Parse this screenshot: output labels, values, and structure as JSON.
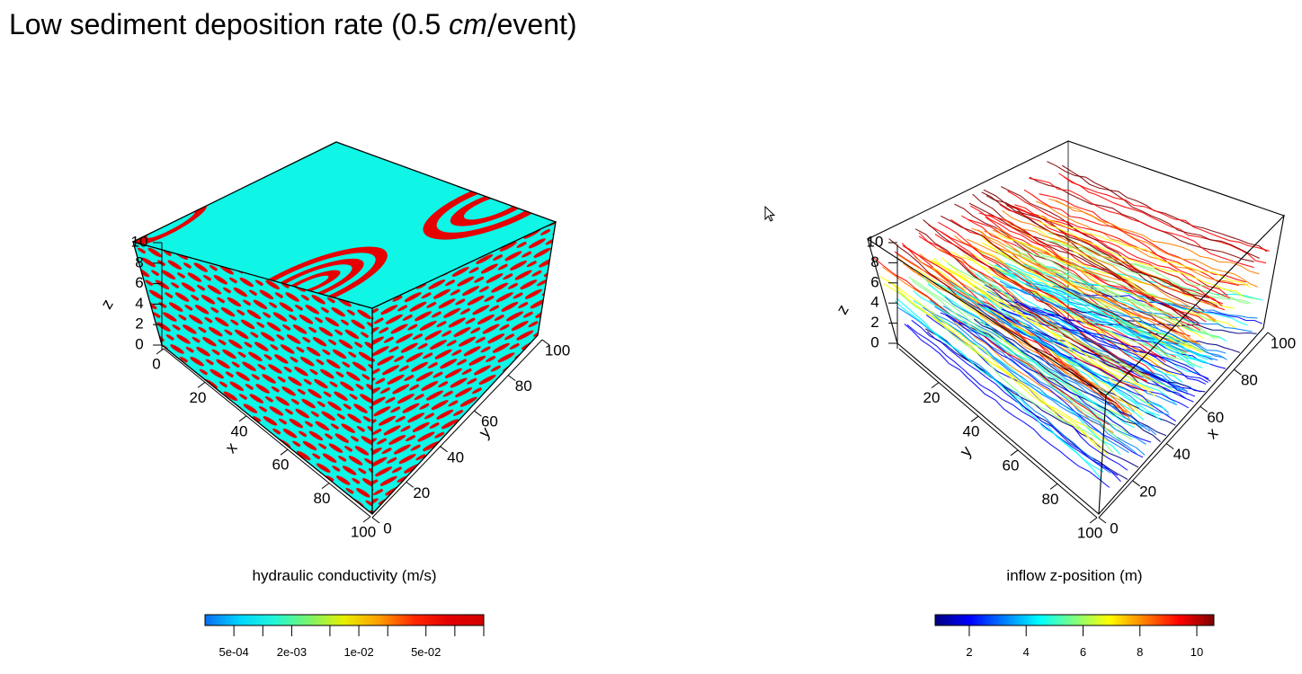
{
  "title": {
    "prefix": "Low sediment deposition rate (0.5 ",
    "unit_italic": "cm",
    "slash": "/",
    "suffix": "event)"
  },
  "colors": {
    "background": "#ffffff",
    "cube_top": "#0ff5e6",
    "cube_lens": "#e60000",
    "frame": "#000000"
  },
  "chart_data": [
    {
      "type": "other",
      "subtype": "3d-block-volume",
      "title": "",
      "axes": {
        "x": {
          "label": "x",
          "ticks": [
            0,
            20,
            40,
            60,
            80,
            100
          ],
          "range": [
            0,
            100
          ]
        },
        "y": {
          "label": "y",
          "ticks": [
            0,
            20,
            40,
            60,
            80,
            100
          ],
          "range": [
            0,
            100
          ]
        },
        "z": {
          "label": "z",
          "ticks": [
            0,
            2,
            4,
            6,
            8,
            10
          ],
          "range": [
            0,
            10
          ]
        }
      },
      "colorbar": {
        "label": "hydraulic conductivity (m/s)",
        "scale": "log",
        "range": [
          0.00025,
          0.2
        ],
        "ticks": [
          "5e-04",
          "2e-03",
          "1e-02",
          "5e-02"
        ],
        "tick_values": [
          0.0005,
          0.002,
          0.01,
          0.05
        ],
        "colormap": [
          "#0a6cf0",
          "#00d6ff",
          "#22f7d8",
          "#7cf36a",
          "#e8f000",
          "#ff9d00",
          "#ff2800",
          "#e40000",
          "#d20000"
        ]
      }
    },
    {
      "type": "line",
      "subtype": "3d-streamlines",
      "title": "",
      "axes": {
        "x": {
          "label": "x",
          "ticks": [
            0,
            20,
            40,
            60,
            80,
            100
          ],
          "range": [
            0,
            100
          ]
        },
        "y": {
          "label": "y",
          "ticks": [
            20,
            40,
            60,
            80,
            100
          ],
          "range": [
            0,
            100
          ]
        },
        "z": {
          "label": "z",
          "ticks": [
            0,
            2,
            4,
            6,
            8,
            10
          ],
          "range": [
            0,
            10
          ]
        }
      },
      "colorbar": {
        "label": "inflow z-position (m)",
        "scale": "linear",
        "range": [
          0.8,
          10.6
        ],
        "ticks": [
          "2",
          "4",
          "6",
          "8",
          "10"
        ],
        "tick_values": [
          2,
          4,
          6,
          8,
          10
        ],
        "colormap": [
          "#00007f",
          "#0000ff",
          "#007fff",
          "#00ffff",
          "#7fff7f",
          "#ffff00",
          "#ff7f00",
          "#ff0000",
          "#7f0000"
        ]
      }
    }
  ]
}
